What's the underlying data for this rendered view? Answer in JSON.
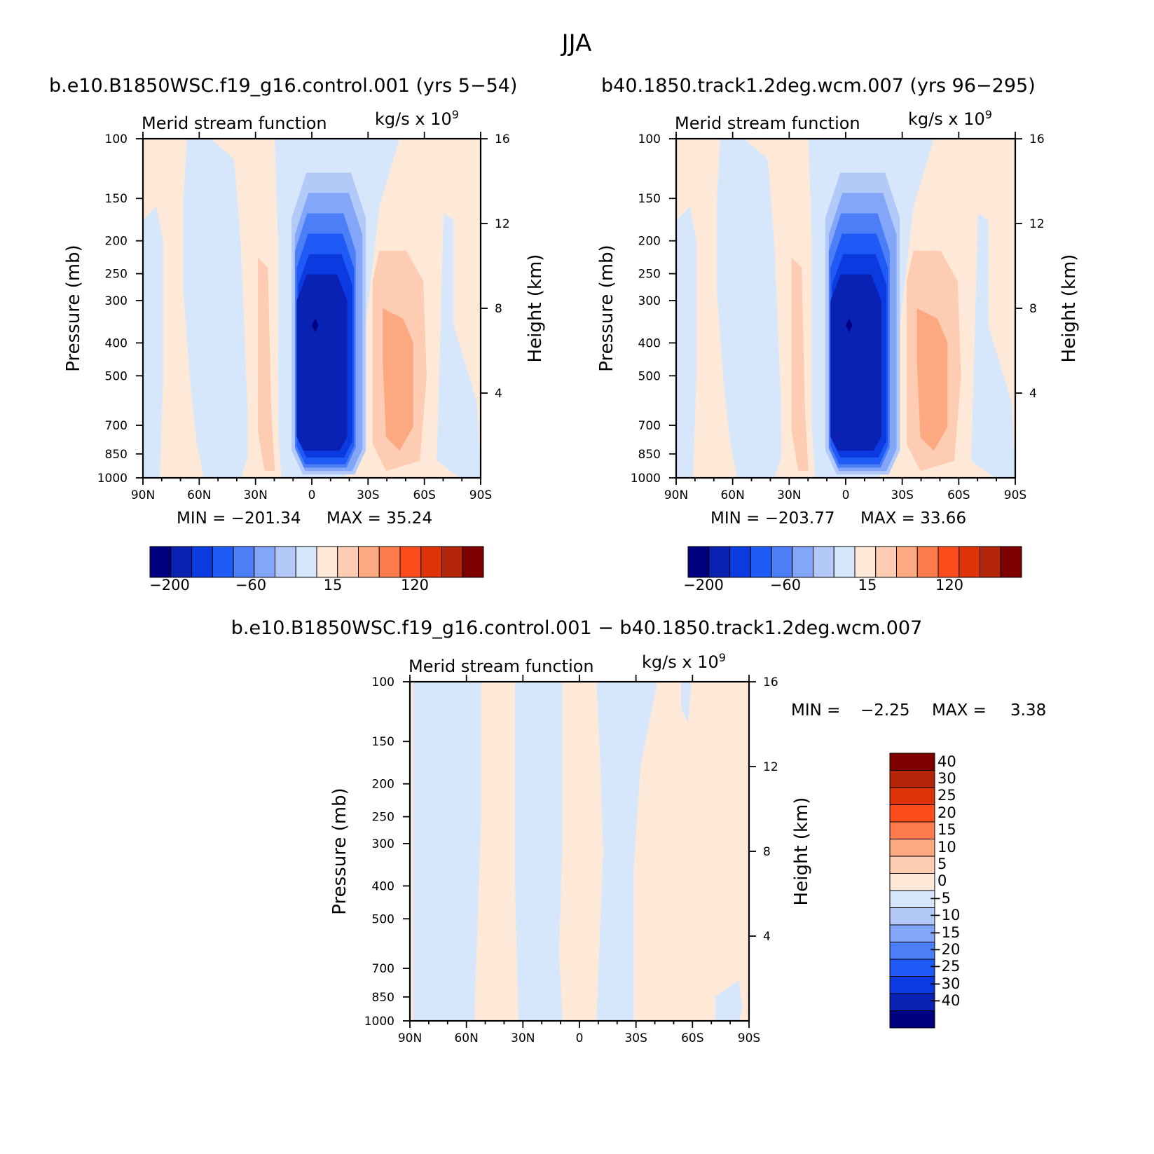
{
  "figure": {
    "title": "JJA",
    "bottom_subtitle": "b.e10.B1850WSC.f19_g16.control.001 − b40.1850.track1.2deg.wcm.007"
  },
  "chart_data": [
    {
      "type": "heatmap",
      "subtitle": "b.e10.B1850WSC.f19_g16.control.001 (yrs 5−54)",
      "title": "Merid stream function",
      "units_text": "kg/s x 10",
      "units_exp": "9",
      "ylabel": "Pressure (mb)",
      "y2label": "Height (km)",
      "x_ticks": [
        "90N",
        "60N",
        "30N",
        "0",
        "30S",
        "60S",
        "90S"
      ],
      "y_ticks": [
        100,
        150,
        200,
        250,
        300,
        400,
        500,
        700,
        850,
        1000
      ],
      "y_log_scale": true,
      "y2_ticks": [
        16,
        12,
        8,
        4
      ],
      "min_label": "MIN = −201.34",
      "max_label": "MAX = 35.24",
      "min": -201.34,
      "max": 35.24,
      "colorbar_labels": [
        "−200",
        "−60",
        "15",
        "120"
      ]
    },
    {
      "type": "heatmap",
      "subtitle": "b40.1850.track1.2deg.wcm.007 (yrs 96−295)",
      "title": "Merid stream function",
      "units_text": "kg/s x 10",
      "units_exp": "9",
      "ylabel": "Pressure (mb)",
      "y2label": "Height (km)",
      "x_ticks": [
        "90N",
        "60N",
        "30N",
        "0",
        "30S",
        "60S",
        "90S"
      ],
      "y_ticks": [
        100,
        150,
        200,
        250,
        300,
        400,
        500,
        700,
        850,
        1000
      ],
      "y_log_scale": true,
      "y2_ticks": [
        16,
        12,
        8,
        4
      ],
      "min_label": "MIN = −203.77",
      "max_label": "MAX = 33.66",
      "min": -203.77,
      "max": 33.66,
      "colorbar_labels": [
        "−200",
        "−60",
        "15",
        "120"
      ]
    },
    {
      "type": "heatmap",
      "title": "Merid stream function",
      "units_text": "kg/s x 10",
      "units_exp": "9",
      "ylabel": "Pressure (mb)",
      "y2label": "Height (km)",
      "x_ticks": [
        "90N",
        "60N",
        "30N",
        "0",
        "30S",
        "60S",
        "90S"
      ],
      "y_ticks": [
        100,
        150,
        200,
        250,
        300,
        400,
        500,
        700,
        850,
        1000
      ],
      "y_log_scale": true,
      "y2_ticks": [
        16,
        12,
        8,
        4
      ],
      "min_label": "MIN =",
      "min_value": "−2.25",
      "max_label": "MAX =",
      "max_value": "3.38",
      "min": -2.25,
      "max": 3.38,
      "colorbar_labels": [
        "40",
        "30",
        "25",
        "20",
        "15",
        "10",
        "5",
        "0",
        "−5",
        "−10",
        "−15",
        "−20",
        "−25",
        "−30",
        "−40"
      ]
    }
  ],
  "colors": {
    "levels": [
      "#000080",
      "#0a22b4",
      "#0b3ae0",
      "#1f5af6",
      "#4c7ef8",
      "#83a6f8",
      "#b3caf8",
      "#d6e7fb",
      "#fee9d8",
      "#fdccb2",
      "#fca982",
      "#fd7b4c",
      "#fb4c1c",
      "#de3208",
      "#b42408",
      "#800000"
    ]
  }
}
